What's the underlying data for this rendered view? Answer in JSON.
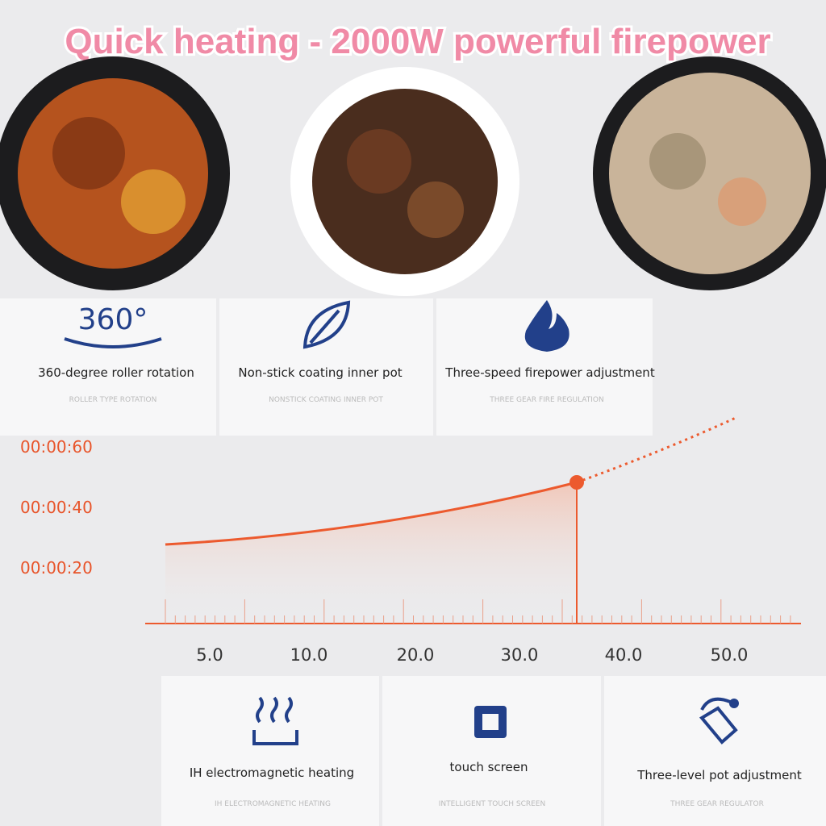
{
  "header": {
    "title": "Quick heating - 2000W powerful firepower"
  },
  "features_top": [
    {
      "icon_text": "360°",
      "title": "360-degree roller rotation",
      "subtitle": "ROLLER TYPE ROTATION"
    },
    {
      "title": "Non-stick coating inner pot",
      "subtitle": "NONSTICK COATING INNER POT"
    },
    {
      "title": "Three-speed firepower adjustment",
      "subtitle": "THREE GEAR FIRE REGULATION"
    }
  ],
  "graph": {
    "y_labels": [
      "00:00:60",
      "00:00:40",
      "00:00:20"
    ],
    "x_labels": [
      "5.0",
      "10.0",
      "20.0",
      "30.0",
      "40.0",
      "50.0"
    ]
  },
  "features_bottom": [
    {
      "title": "IH electromagnetic heating",
      "subtitle": "IH ELECTROMAGNETIC HEATING"
    },
    {
      "title": "touch screen",
      "subtitle": "INTELLIGENT TOUCH SCREEN"
    },
    {
      "title": "Three-level pot adjustment",
      "subtitle": "THREE GEAR REGULATOR"
    }
  ]
}
